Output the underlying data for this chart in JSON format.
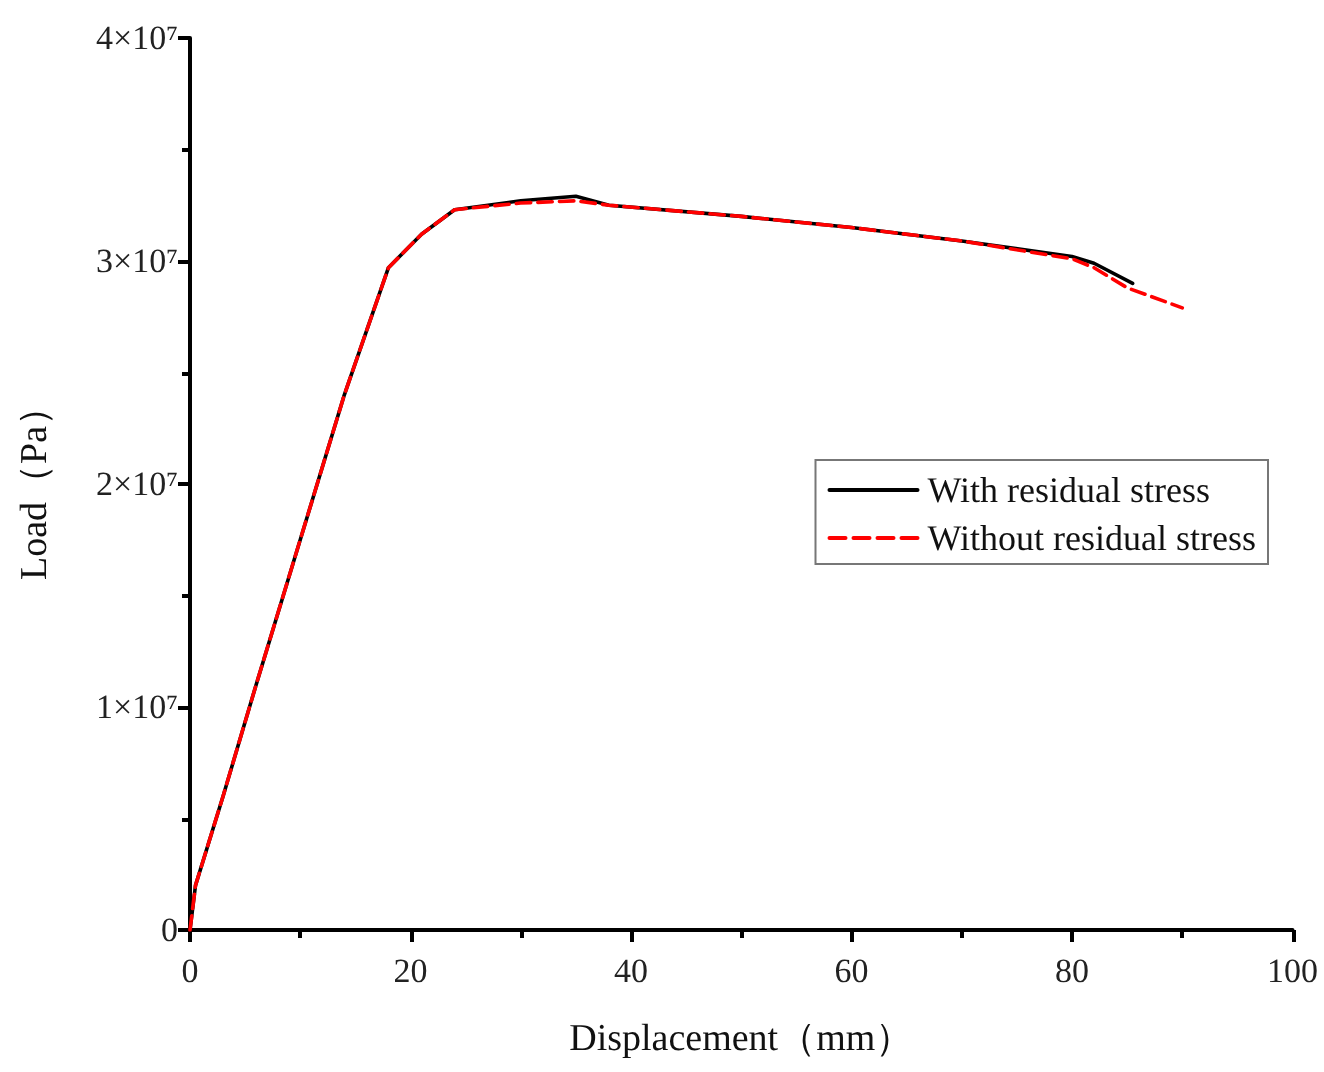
{
  "chart_data": {
    "type": "line",
    "xlabel": "Displacement（mm）",
    "ylabel": "Load（Pa）",
    "xlim": [
      0,
      100
    ],
    "xticks": [
      0,
      20,
      40,
      60,
      80,
      100
    ],
    "ylim": [
      0,
      40000000
    ],
    "yticks": [
      0,
      {
        "value": 10000000,
        "label": "1×10⁷"
      },
      {
        "value": 20000000,
        "label": "2×10⁷"
      },
      {
        "value": 30000000,
        "label": "3×10⁷"
      },
      {
        "value": 40000000,
        "label": "4×10⁷"
      }
    ],
    "grid": false,
    "legend": "right",
    "marker": "none",
    "series": [
      {
        "name": "With residual stress",
        "color": "#000000",
        "line_style": "solid",
        "x": [
          0,
          0.5,
          3,
          6,
          10,
          14,
          18,
          21,
          24,
          30,
          35,
          38,
          50,
          60,
          70,
          80,
          82,
          85.5
        ],
        "values": [
          0,
          2000000,
          6000000,
          11000000,
          17500000,
          24000000,
          29700000,
          31200000,
          32300000,
          32700000,
          32900000,
          32500000,
          32000000,
          31500000,
          30900000,
          30200000,
          29900000,
          29000000
        ]
      },
      {
        "name": "Without residual stress",
        "color": "#ff0000",
        "line_style": "dashed",
        "x": [
          0,
          0.5,
          3,
          6,
          10,
          14,
          18,
          21,
          24,
          30,
          35,
          38,
          50,
          60,
          70,
          80,
          82,
          85,
          90
        ],
        "values": [
          0,
          2000000,
          6000000,
          11000000,
          17500000,
          24000000,
          29700000,
          31200000,
          32300000,
          32600000,
          32700000,
          32500000,
          32000000,
          31500000,
          30900000,
          30100000,
          29700000,
          28800000,
          27900000
        ]
      }
    ]
  }
}
